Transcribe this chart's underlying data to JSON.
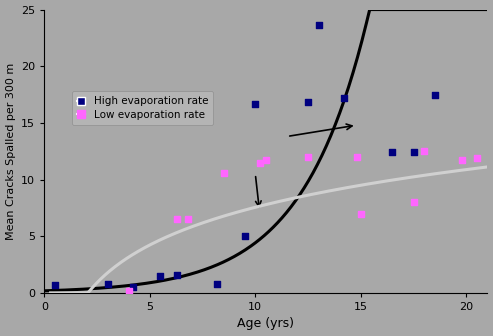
{
  "background_color": "#A8A8A8",
  "plot_bg_color": "#A8A8A8",
  "xlabel": "Age (yrs)",
  "ylabel": "Mean Cracks Spalled per 300 m",
  "xlim": [
    0,
    21
  ],
  "ylim": [
    0,
    25
  ],
  "xticks": [
    0,
    5,
    10,
    15,
    20
  ],
  "yticks": [
    0,
    5,
    10,
    15,
    20,
    25
  ],
  "high_evap_x": [
    0.5,
    3.0,
    4.2,
    5.5,
    6.3,
    8.2,
    9.5,
    10.0,
    12.5,
    13.0,
    14.2,
    16.5,
    17.5,
    18.5
  ],
  "high_evap_y": [
    0.7,
    0.8,
    0.5,
    1.5,
    1.6,
    0.8,
    5.0,
    16.7,
    16.8,
    23.6,
    17.2,
    12.4,
    12.4,
    17.5
  ],
  "low_evap_x": [
    4.0,
    6.3,
    6.8,
    8.5,
    10.2,
    10.5,
    12.5,
    14.8,
    15.0,
    17.5,
    18.0,
    19.8,
    20.5
  ],
  "low_evap_y": [
    0.2,
    6.5,
    6.5,
    10.6,
    11.5,
    11.7,
    12.0,
    12.0,
    7.0,
    8.0,
    12.5,
    11.7,
    11.9
  ],
  "high_evap_color": "#000080",
  "low_evap_color": "#FF66FF",
  "exp_line_color": "#000000",
  "log_line_color": "#D0D0D0",
  "exp_a": 0.18,
  "exp_b": 0.32,
  "log_a": 4.8,
  "log_b": -3.5,
  "log_x0": 0.3
}
